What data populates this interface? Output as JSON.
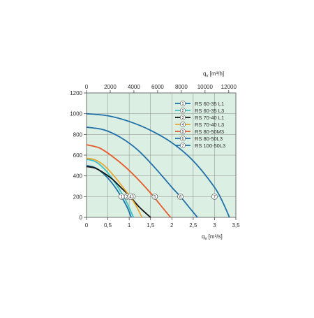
{
  "chart_data": {
    "type": "line",
    "x_primary": {
      "label_main": "q",
      "label_sub": "v",
      "unit": "[m³/s]",
      "range": [
        0,
        3.5
      ],
      "ticks": [
        0,
        0.5,
        1,
        1.5,
        2,
        2.5,
        3,
        3.5
      ],
      "tick_labels": [
        "0",
        "0,5",
        "1",
        "1,5",
        "2",
        "2,5",
        "3",
        "3,5"
      ]
    },
    "x_secondary": {
      "label_main": "q",
      "label_sub": "v",
      "unit": "[m³/h]",
      "range": [
        0,
        12600
      ],
      "ticks": [
        0,
        2000,
        4000,
        6000,
        8000,
        10000,
        12000
      ],
      "tick_labels": [
        "0",
        "2000",
        "4000",
        "6000",
        "8000",
        "10000",
        "12000"
      ]
    },
    "y": {
      "range": [
        0,
        1200
      ],
      "ticks": [
        0,
        200,
        400,
        600,
        800,
        1000,
        1200
      ],
      "tick_labels": [
        "0",
        "200",
        "400",
        "600",
        "800",
        "1000",
        "1200"
      ]
    },
    "grid": true,
    "legend_position": "top-right",
    "marker_y": 200,
    "series": [
      {
        "id": "1",
        "name": "RS 60-35 L1",
        "color": "#1a73a8",
        "marker_x": 0.82,
        "points": [
          [
            0,
            500
          ],
          [
            0.2,
            480
          ],
          [
            0.4,
            420
          ],
          [
            0.6,
            330
          ],
          [
            0.8,
            210
          ],
          [
            0.95,
            100
          ],
          [
            1.05,
            0
          ]
        ]
      },
      {
        "id": "2",
        "name": "RS 60-35 L3",
        "color": "#3dbfbf",
        "marker_x": 0.95,
        "points": [
          [
            0,
            560
          ],
          [
            0.2,
            540
          ],
          [
            0.4,
            475
          ],
          [
            0.6,
            375
          ],
          [
            0.8,
            250
          ],
          [
            0.95,
            140
          ],
          [
            1.1,
            0
          ]
        ]
      },
      {
        "id": "3",
        "name": "RS 70-40 L1",
        "color": "#111111",
        "marker_x": 1.08,
        "points": [
          [
            0,
            490
          ],
          [
            0.2,
            475
          ],
          [
            0.4,
            430
          ],
          [
            0.6,
            370
          ],
          [
            0.8,
            290
          ],
          [
            1.0,
            210
          ],
          [
            1.2,
            115
          ],
          [
            1.35,
            55
          ],
          [
            1.5,
            0
          ]
        ]
      },
      {
        "id": "4",
        "name": "RS 70-40 L3",
        "color": "#e8a832",
        "marker_x": 1.03,
        "points": [
          [
            0,
            570
          ],
          [
            0.2,
            555
          ],
          [
            0.4,
            505
          ],
          [
            0.6,
            420
          ],
          [
            0.8,
            320
          ],
          [
            1.0,
            210
          ],
          [
            1.15,
            120
          ],
          [
            1.3,
            0
          ]
        ]
      },
      {
        "id": "5",
        "name": "RS 80-50M3",
        "color": "#e55a2b",
        "marker_x": 1.6,
        "points": [
          [
            0,
            700
          ],
          [
            0.3,
            670
          ],
          [
            0.6,
            590
          ],
          [
            0.9,
            490
          ],
          [
            1.2,
            370
          ],
          [
            1.5,
            235
          ],
          [
            1.7,
            135
          ],
          [
            1.9,
            35
          ],
          [
            1.97,
            0
          ]
        ]
      },
      {
        "id": "6",
        "name": "RS 80-50L3",
        "color": "#1f6fa8",
        "marker_x": 2.2,
        "points": [
          [
            0,
            870
          ],
          [
            0.4,
            845
          ],
          [
            0.8,
            770
          ],
          [
            1.2,
            650
          ],
          [
            1.6,
            480
          ],
          [
            2.0,
            290
          ],
          [
            2.2,
            200
          ],
          [
            2.4,
            100
          ],
          [
            2.6,
            0
          ]
        ]
      },
      {
        "id": "7",
        "name": "RS 100-50L3",
        "color": "#1f6fa8",
        "marker_x": 3.0,
        "points": [
          [
            0,
            1000
          ],
          [
            0.5,
            980
          ],
          [
            1.0,
            925
          ],
          [
            1.5,
            840
          ],
          [
            2.0,
            720
          ],
          [
            2.5,
            545
          ],
          [
            3.0,
            290
          ],
          [
            3.2,
            140
          ],
          [
            3.35,
            0
          ]
        ]
      }
    ]
  }
}
